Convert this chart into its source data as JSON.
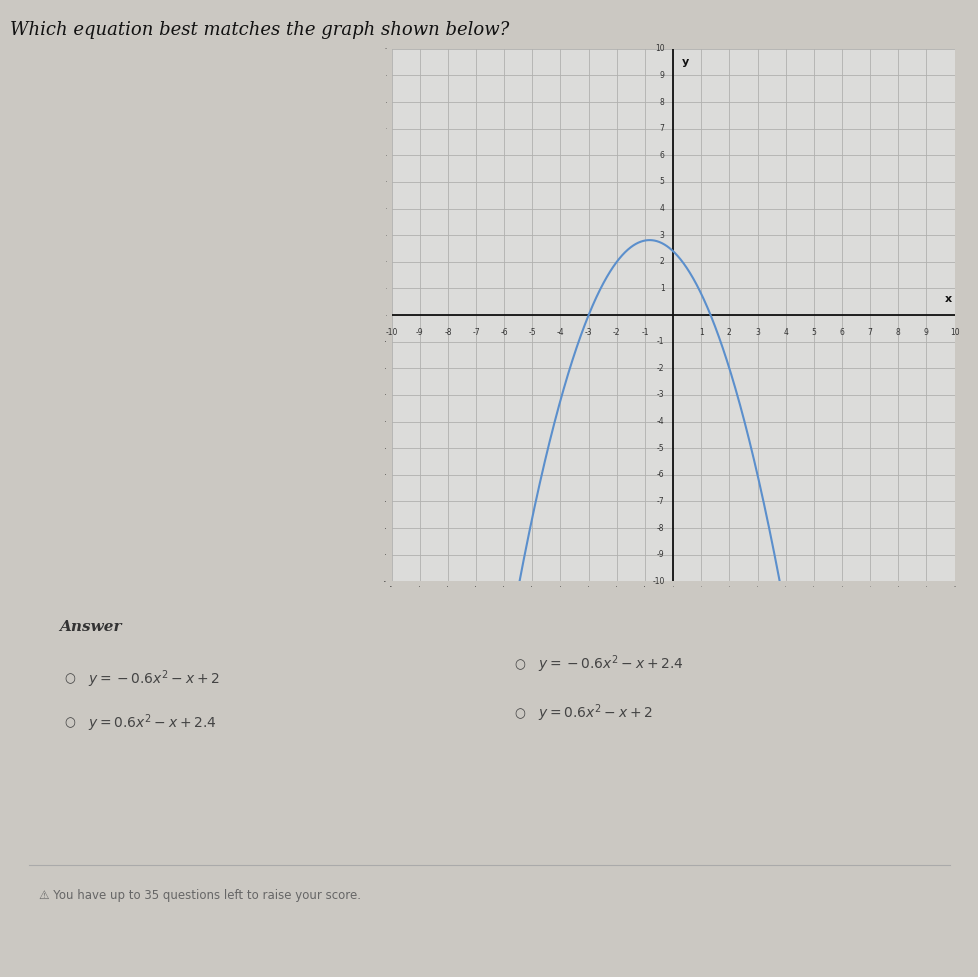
{
  "title": "Which equation best matches the graph shown below?",
  "a": -0.6,
  "b": -1.0,
  "c": 2.4,
  "x_min": -10,
  "x_max": 10,
  "y_min": -10,
  "y_max": 10,
  "curve_color": "#5b8fcc",
  "curve_linewidth": 1.5,
  "page_bg_color": "#cbc8c2",
  "graph_bg_color": "#dcdcda",
  "grid_color": "#b0b0ae",
  "axis_color": "#111111",
  "answer_label": "Answer",
  "opt_left_1": "y=-0.6x^2-x+2",
  "opt_left_2": "y=0.6x^2-x+2.4",
  "opt_right_1": "y=-0.6x^2-x+2.4",
  "opt_right_2": "y=0.6x^2-x+2",
  "footer_text": "You have up to 35 questions left to raise your score."
}
